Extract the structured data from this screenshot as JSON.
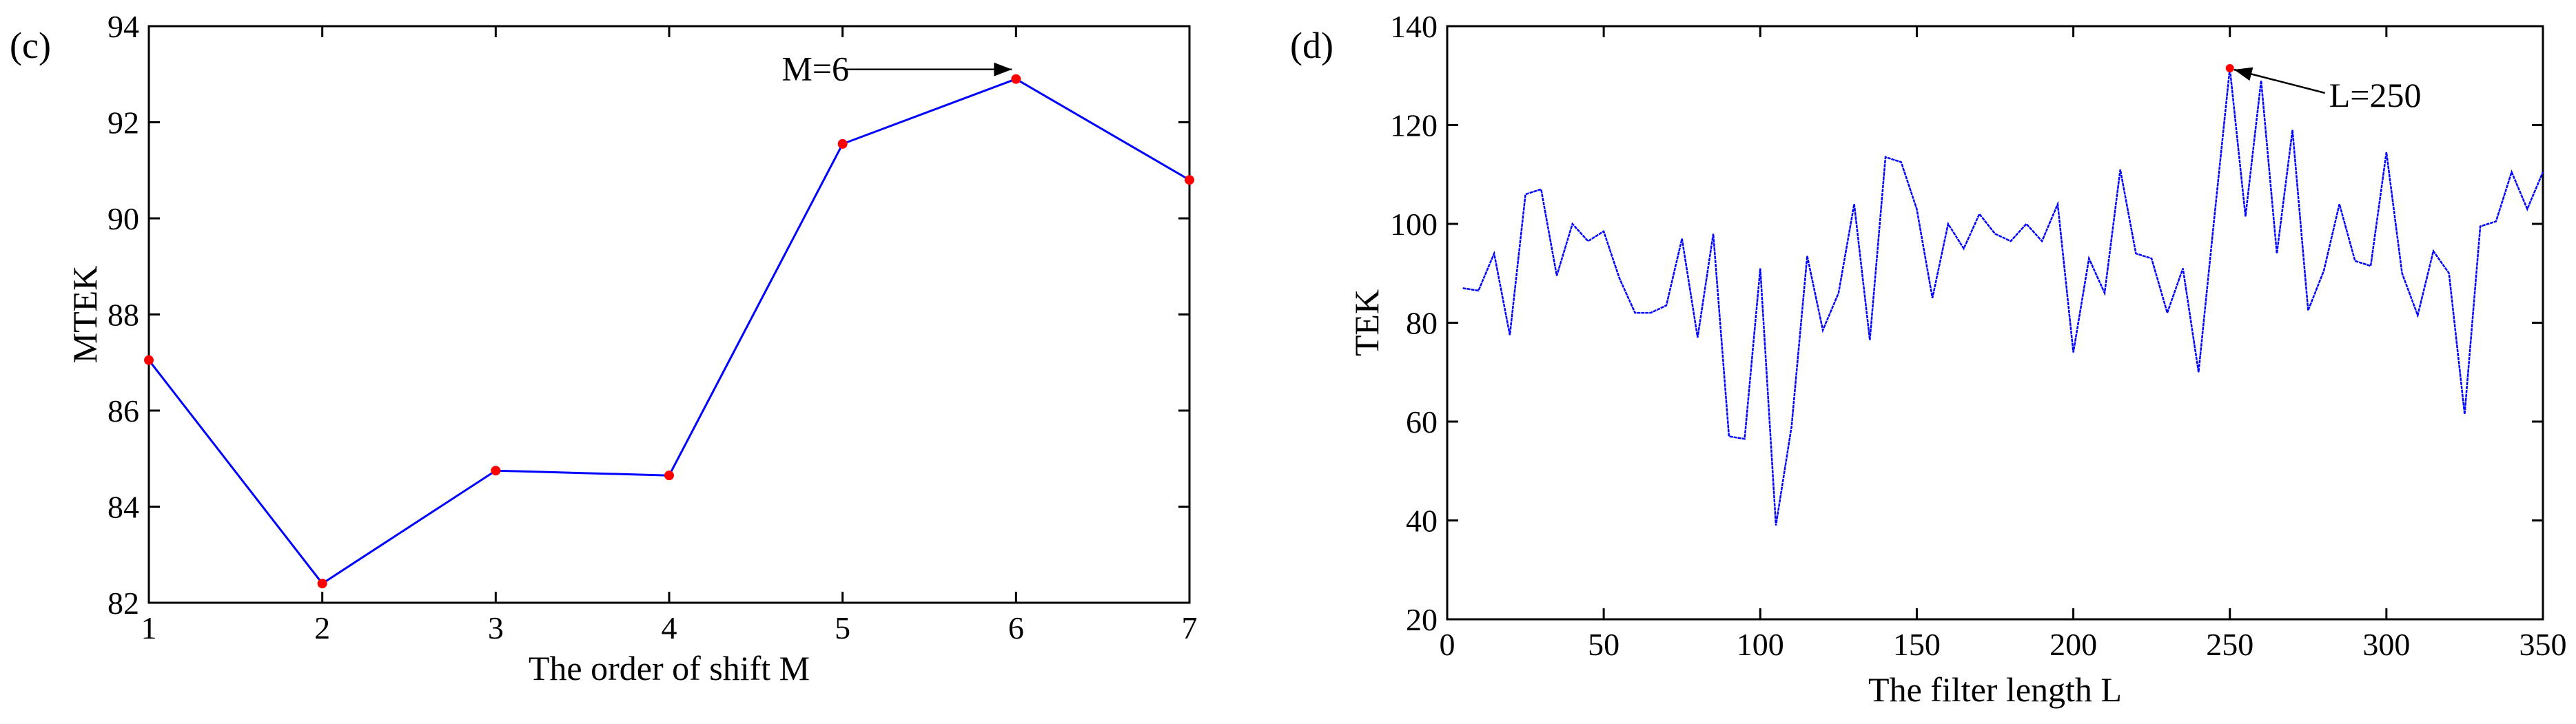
{
  "chart_data": [
    {
      "type": "line",
      "panel_label": "(c)",
      "xlabel": "The order of shift  M",
      "ylabel": "MTEK",
      "xlim": [
        1,
        7
      ],
      "ylim": [
        82,
        94
      ],
      "xticks": [
        1,
        2,
        3,
        4,
        5,
        6,
        7
      ],
      "yticks": [
        82,
        84,
        86,
        88,
        90,
        92,
        94
      ],
      "grid": false,
      "series": [
        {
          "x": [
            1,
            2,
            3,
            4,
            5,
            6,
            7
          ],
          "values": [
            87.05,
            82.4,
            84.75,
            84.65,
            91.55,
            92.9,
            90.8
          ],
          "line_color": "#0000ff",
          "marker_color": "#ff0000"
        }
      ],
      "annotation": {
        "text": "M=6",
        "x": 6,
        "y": 92.9
      }
    },
    {
      "type": "line",
      "panel_label": "(d)",
      "xlabel": "The filter length L",
      "ylabel": "TEK",
      "xlim": [
        0,
        350
      ],
      "ylim": [
        20,
        140
      ],
      "xticks": [
        0,
        50,
        100,
        150,
        200,
        250,
        300,
        350
      ],
      "yticks": [
        20,
        40,
        60,
        80,
        100,
        120,
        140
      ],
      "grid": false,
      "series": [
        {
          "x": [
            5,
            10,
            15,
            20,
            25,
            30,
            35,
            40,
            45,
            50,
            55,
            60,
            65,
            70,
            75,
            80,
            85,
            90,
            95,
            100,
            105,
            110,
            115,
            120,
            125,
            130,
            135,
            140,
            145,
            150,
            155,
            160,
            165,
            170,
            175,
            180,
            185,
            190,
            195,
            200,
            205,
            210,
            215,
            220,
            225,
            230,
            235,
            240,
            245,
            250,
            255,
            260,
            265,
            270,
            275,
            280,
            285,
            290,
            295,
            300,
            305,
            310,
            315,
            320,
            325,
            330,
            335,
            340,
            345,
            350
          ],
          "values": [
            87,
            86.5,
            94,
            77.5,
            106,
            107,
            89.5,
            100,
            96.5,
            98.5,
            89,
            82,
            82,
            83.5,
            97,
            77,
            98,
            57,
            56.5,
            91,
            39,
            59,
            93.5,
            78.5,
            86,
            104,
            76.5,
            113.5,
            112.5,
            103,
            85,
            100,
            95,
            102,
            98,
            96.5,
            100,
            96.5,
            104,
            74,
            93,
            86,
            111,
            94,
            93,
            82,
            91,
            70,
            101,
            131.5,
            101.5,
            129,
            94,
            119,
            82.5,
            90.5,
            104,
            92.5,
            91.5,
            114.5,
            90,
            81.5,
            94.5,
            90,
            61.5,
            99.5,
            100.5,
            110.5,
            103,
            110.5
          ],
          "line_color": "#0000ff"
        }
      ],
      "highlight": {
        "x": 250,
        "y": 131.5,
        "marker_color": "#ff0000"
      },
      "annotation": {
        "text": "L=250",
        "x": 250,
        "y": 131.5
      }
    }
  ]
}
